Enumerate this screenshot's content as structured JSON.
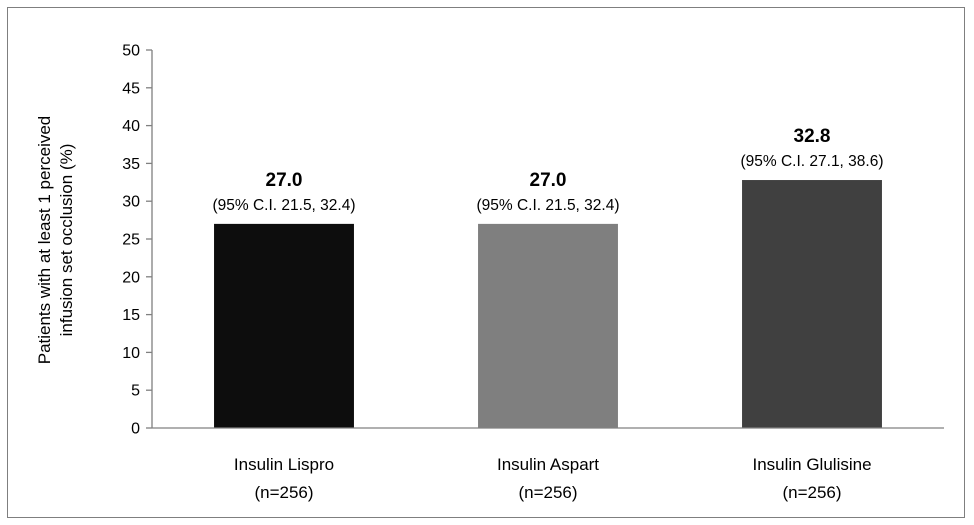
{
  "chart_data": {
    "type": "bar",
    "ylabel_lines": [
      "Patients with at least 1 perceived",
      "infusion set occlusion (%)"
    ],
    "ylim": [
      0,
      50
    ],
    "yticks": [
      0,
      5,
      10,
      15,
      20,
      25,
      30,
      35,
      40,
      45,
      50
    ],
    "grid": false,
    "legend": "none",
    "categories": [
      {
        "name": "Insulin Lispro",
        "n_label": "(n=256)",
        "value": 27.0,
        "value_label": "27.0",
        "ci_label": "(95% C.I. 21.5, 32.4)",
        "color": "#0d0d0d"
      },
      {
        "name": "Insulin Aspart",
        "n_label": "(n=256)",
        "value": 27.0,
        "value_label": "27.0",
        "ci_label": "(95% C.I. 21.5, 32.4)",
        "color": "#7f7f7f"
      },
      {
        "name": "Insulin Glulisine",
        "n_label": "(n=256)",
        "value": 32.8,
        "value_label": "32.8",
        "ci_label": "(95% C.I. 27.1, 38.6)",
        "color": "#404040"
      }
    ]
  }
}
